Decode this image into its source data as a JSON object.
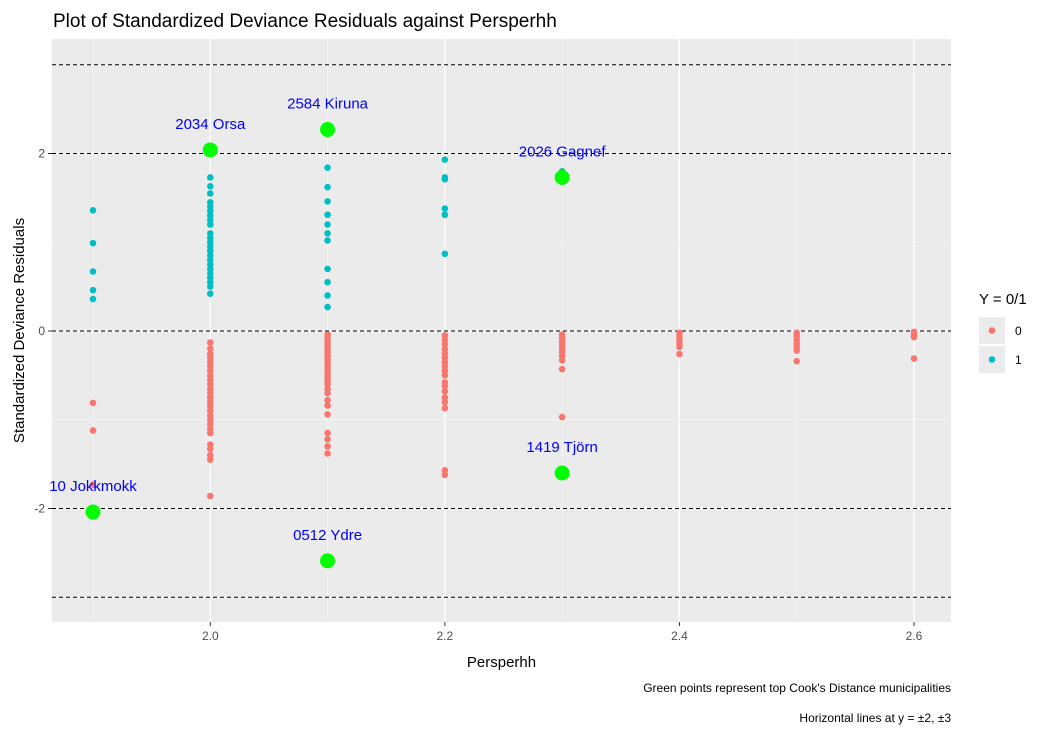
{
  "chart_data": {
    "type": "scatter",
    "title": "Plot of Standardized Deviance Residuals against Persperhh",
    "xlabel": "Persperhh",
    "ylabel": "Standardized Deviance Residuals",
    "xlim": [
      1.9,
      2.6
    ],
    "ylim": [
      -3.3,
      3.25
    ],
    "x_ticks": [
      2.0,
      2.2,
      2.4,
      2.6
    ],
    "x_tick_labels": [
      "2.0",
      "2.2",
      "2.4",
      "2.6"
    ],
    "y_ticks": [
      -2,
      0,
      2
    ],
    "y_tick_labels": [
      "-2",
      "0",
      "2"
    ],
    "grid": true,
    "reference_lines": [
      -3,
      -2,
      0,
      2,
      3
    ],
    "legend": {
      "title": "Y = 0/1",
      "position": "right",
      "entries": [
        {
          "label": "0",
          "color": "#F8766D"
        },
        {
          "label": "1",
          "color": "#00BFC4"
        }
      ]
    },
    "series": [
      {
        "name": "0",
        "color": "#F8766D",
        "points": [
          [
            1.9,
            -0.81
          ],
          [
            1.9,
            -1.12
          ],
          [
            1.9,
            -1.73
          ],
          [
            2.0,
            -0.13
          ],
          [
            2.0,
            -0.2
          ],
          [
            2.0,
            -0.26
          ],
          [
            2.0,
            -0.3
          ],
          [
            2.0,
            -0.35
          ],
          [
            2.0,
            -0.4
          ],
          [
            2.0,
            -0.45
          ],
          [
            2.0,
            -0.5
          ],
          [
            2.0,
            -0.55
          ],
          [
            2.0,
            -0.6
          ],
          [
            2.0,
            -0.65
          ],
          [
            2.0,
            -0.7
          ],
          [
            2.0,
            -0.75
          ],
          [
            2.0,
            -0.8
          ],
          [
            2.0,
            -0.85
          ],
          [
            2.0,
            -0.9
          ],
          [
            2.0,
            -0.95
          ],
          [
            2.0,
            -1.0
          ],
          [
            2.0,
            -1.05
          ],
          [
            2.0,
            -1.1
          ],
          [
            2.0,
            -1.15
          ],
          [
            2.0,
            -1.28
          ],
          [
            2.0,
            -1.33
          ],
          [
            2.0,
            -1.4
          ],
          [
            2.0,
            -1.45
          ],
          [
            2.0,
            -1.86
          ],
          [
            2.1,
            -0.04
          ],
          [
            2.1,
            -0.08
          ],
          [
            2.1,
            -0.12
          ],
          [
            2.1,
            -0.16
          ],
          [
            2.1,
            -0.2
          ],
          [
            2.1,
            -0.24
          ],
          [
            2.1,
            -0.28
          ],
          [
            2.1,
            -0.32
          ],
          [
            2.1,
            -0.36
          ],
          [
            2.1,
            -0.4
          ],
          [
            2.1,
            -0.44
          ],
          [
            2.1,
            -0.48
          ],
          [
            2.1,
            -0.52
          ],
          [
            2.1,
            -0.56
          ],
          [
            2.1,
            -0.6
          ],
          [
            2.1,
            -0.65
          ],
          [
            2.1,
            -0.7
          ],
          [
            2.1,
            -0.78
          ],
          [
            2.1,
            -0.84
          ],
          [
            2.1,
            -0.94
          ],
          [
            2.1,
            -1.15
          ],
          [
            2.1,
            -1.22
          ],
          [
            2.1,
            -1.3
          ],
          [
            2.1,
            -1.38
          ],
          [
            2.2,
            -0.05
          ],
          [
            2.2,
            -0.1
          ],
          [
            2.2,
            -0.15
          ],
          [
            2.2,
            -0.2
          ],
          [
            2.2,
            -0.25
          ],
          [
            2.2,
            -0.3
          ],
          [
            2.2,
            -0.35
          ],
          [
            2.2,
            -0.4
          ],
          [
            2.2,
            -0.45
          ],
          [
            2.2,
            -0.5
          ],
          [
            2.2,
            -0.58
          ],
          [
            2.2,
            -0.62
          ],
          [
            2.2,
            -0.68
          ],
          [
            2.2,
            -0.75
          ],
          [
            2.2,
            -0.8
          ],
          [
            2.2,
            -0.87
          ],
          [
            2.2,
            -1.57
          ],
          [
            2.2,
            -1.62
          ],
          [
            2.3,
            -0.04
          ],
          [
            2.3,
            -0.08
          ],
          [
            2.3,
            -0.12
          ],
          [
            2.3,
            -0.16
          ],
          [
            2.3,
            -0.2
          ],
          [
            2.3,
            -0.24
          ],
          [
            2.3,
            -0.28
          ],
          [
            2.3,
            -0.33
          ],
          [
            2.3,
            -0.43
          ],
          [
            2.3,
            -0.97
          ],
          [
            2.4,
            -0.02
          ],
          [
            2.4,
            -0.06
          ],
          [
            2.4,
            -0.1
          ],
          [
            2.4,
            -0.14
          ],
          [
            2.4,
            -0.18
          ],
          [
            2.4,
            -0.26
          ],
          [
            2.5,
            -0.02
          ],
          [
            2.5,
            -0.06
          ],
          [
            2.5,
            -0.1
          ],
          [
            2.5,
            -0.14
          ],
          [
            2.5,
            -0.18
          ],
          [
            2.5,
            -0.22
          ],
          [
            2.5,
            -0.34
          ],
          [
            2.6,
            -0.01
          ],
          [
            2.6,
            -0.04
          ],
          [
            2.6,
            -0.07
          ],
          [
            2.6,
            -0.31
          ]
        ]
      },
      {
        "name": "1",
        "color": "#00BFC4",
        "points": [
          [
            1.9,
            1.36
          ],
          [
            1.9,
            0.99
          ],
          [
            1.9,
            0.67
          ],
          [
            1.9,
            0.46
          ],
          [
            1.9,
            0.36
          ],
          [
            2.0,
            1.73
          ],
          [
            2.0,
            1.63
          ],
          [
            2.0,
            1.55
          ],
          [
            2.0,
            1.45
          ],
          [
            2.0,
            1.4
          ],
          [
            2.0,
            1.35
          ],
          [
            2.0,
            1.3
          ],
          [
            2.0,
            1.25
          ],
          [
            2.0,
            1.2
          ],
          [
            2.0,
            1.1
          ],
          [
            2.0,
            1.05
          ],
          [
            2.0,
            1.0
          ],
          [
            2.0,
            0.95
          ],
          [
            2.0,
            0.9
          ],
          [
            2.0,
            0.85
          ],
          [
            2.0,
            0.8
          ],
          [
            2.0,
            0.75
          ],
          [
            2.0,
            0.7
          ],
          [
            2.0,
            0.65
          ],
          [
            2.0,
            0.6
          ],
          [
            2.0,
            0.55
          ],
          [
            2.0,
            0.5
          ],
          [
            2.0,
            0.42
          ],
          [
            2.1,
            1.84
          ],
          [
            2.1,
            1.62
          ],
          [
            2.1,
            1.46
          ],
          [
            2.1,
            1.31
          ],
          [
            2.1,
            1.2
          ],
          [
            2.1,
            1.1
          ],
          [
            2.1,
            1.02
          ],
          [
            2.1,
            0.7
          ],
          [
            2.1,
            0.55
          ],
          [
            2.1,
            0.4
          ],
          [
            2.1,
            0.27
          ],
          [
            2.2,
            1.93
          ],
          [
            2.2,
            1.73
          ],
          [
            2.2,
            1.71
          ],
          [
            2.2,
            1.38
          ],
          [
            2.2,
            1.31
          ],
          [
            2.2,
            0.87
          ],
          [
            2.3,
            1.8
          ]
        ]
      }
    ],
    "highlighted": {
      "color": "#00FF00",
      "points": [
        {
          "x": 2.0,
          "y": 2.04,
          "label": "2034 Orsa"
        },
        {
          "x": 2.1,
          "y": 2.27,
          "label": "2584 Kiruna"
        },
        {
          "x": 2.3,
          "y": 1.73,
          "label": "2026 Gagnef"
        },
        {
          "x": 1.9,
          "y": -2.04,
          "label": "10 Jokkmokk"
        },
        {
          "x": 2.1,
          "y": -2.59,
          "label": "0512 Ydre"
        },
        {
          "x": 2.3,
          "y": -1.6,
          "label": "1419 Tjörn"
        }
      ]
    },
    "annotation_color": "#0000FF",
    "captions": [
      "Green points represent top Cook's Distance municipalities",
      "Horizontal lines at y = ±2, ±3"
    ]
  }
}
